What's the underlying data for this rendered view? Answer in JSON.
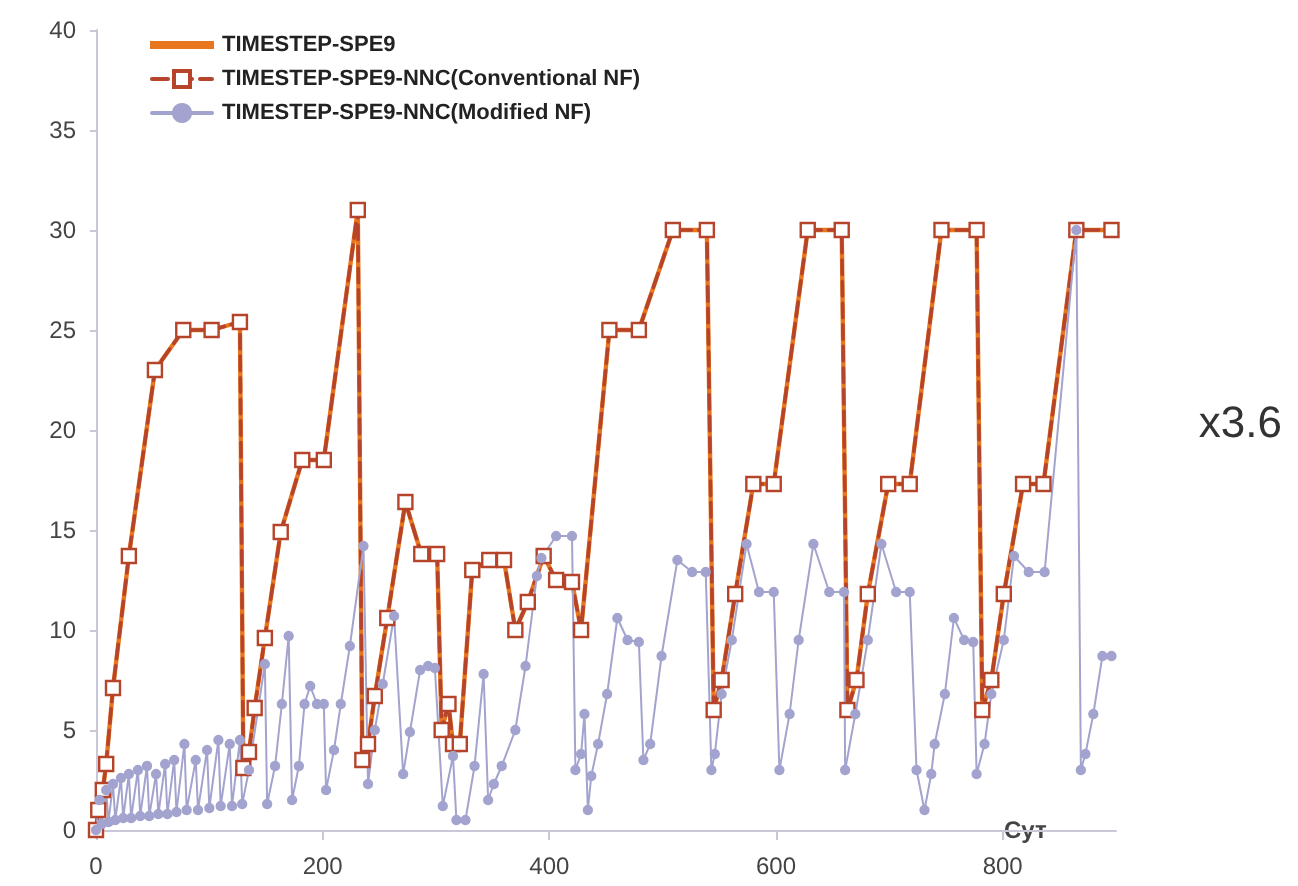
{
  "chart_data": {
    "type": "line",
    "xlabel": "Сут",
    "xlim": [
      0,
      900
    ],
    "xticks": [
      0,
      200,
      400,
      600,
      800
    ],
    "ylim": [
      0,
      40
    ],
    "yticks": [
      0,
      5,
      10,
      15,
      20,
      25,
      30,
      35,
      40
    ],
    "grid": false,
    "legend": "top left",
    "annotations": [
      "x3.6"
    ],
    "series": [
      {
        "name": "TIMESTEP-SPE9",
        "color": "#e8761e",
        "marker": "none",
        "line_style": "solid",
        "x": [
          0,
          2,
          6,
          9,
          15,
          29,
          52,
          77,
          102,
          127,
          130,
          135,
          140,
          149,
          163,
          182,
          201,
          231,
          235,
          240,
          246,
          257,
          273,
          287,
          301,
          305,
          311,
          315,
          321,
          332,
          347,
          360,
          370,
          381,
          395,
          406,
          420,
          428,
          453,
          479,
          509,
          539,
          545,
          552,
          564,
          580,
          598,
          628,
          658,
          663,
          671,
          681,
          699,
          718,
          746,
          777,
          782,
          790,
          801,
          818,
          836,
          865,
          896
        ],
        "values": [
          0,
          1,
          2,
          3.3,
          7.1,
          13.7,
          23,
          25,
          25,
          25.4,
          3.1,
          3.9,
          6.1,
          9.6,
          14.9,
          18.5,
          18.5,
          31,
          3.5,
          4.3,
          6.7,
          10.6,
          16.4,
          13.8,
          13.8,
          5,
          6.3,
          4.3,
          4.3,
          13,
          13.5,
          13.5,
          10,
          11.4,
          13.7,
          12.5,
          12.4,
          10,
          25,
          25,
          30,
          30,
          6,
          7.5,
          11.8,
          17.3,
          17.3,
          30,
          30,
          6,
          7.5,
          11.8,
          17.3,
          17.3,
          30,
          30,
          6,
          7.5,
          11.8,
          17.3,
          17.3,
          30,
          30
        ]
      },
      {
        "name": "TIMESTEP-SPE9-NNC(Conventional NF)",
        "color": "#b5442a",
        "marker": "square",
        "line_style": "dashed",
        "x": [
          0,
          2,
          6,
          9,
          15,
          29,
          52,
          77,
          102,
          127,
          130,
          135,
          140,
          149,
          163,
          182,
          201,
          231,
          235,
          240,
          246,
          257,
          273,
          287,
          301,
          305,
          311,
          315,
          321,
          332,
          347,
          360,
          370,
          381,
          395,
          406,
          420,
          428,
          453,
          479,
          509,
          539,
          545,
          552,
          564,
          580,
          598,
          628,
          658,
          663,
          671,
          681,
          699,
          718,
          746,
          777,
          782,
          790,
          801,
          818,
          836,
          865,
          896
        ],
        "values": [
          0,
          1,
          2,
          3.3,
          7.1,
          13.7,
          23,
          25,
          25,
          25.4,
          3.1,
          3.9,
          6.1,
          9.6,
          14.9,
          18.5,
          18.5,
          31,
          3.5,
          4.3,
          6.7,
          10.6,
          16.4,
          13.8,
          13.8,
          5,
          6.3,
          4.3,
          4.3,
          13,
          13.5,
          13.5,
          10,
          11.4,
          13.7,
          12.5,
          12.4,
          10,
          25,
          25,
          30,
          30,
          6,
          7.5,
          11.8,
          17.3,
          17.3,
          30,
          30,
          6,
          7.5,
          11.8,
          17.3,
          17.3,
          30,
          30,
          6,
          7.5,
          11.8,
          17.3,
          17.3,
          30,
          30
        ]
      },
      {
        "name": "TIMESTEP-SPE9-NNC(Modified NF)",
        "color": "#a3a3cf",
        "marker": "circle",
        "line_style": "solid",
        "x": [
          0,
          3,
          5,
          9,
          11,
          15,
          17,
          22,
          24,
          29,
          31,
          37,
          39,
          45,
          47,
          53,
          55,
          61,
          63,
          69,
          71,
          78,
          80,
          88,
          90,
          98,
          100,
          108,
          110,
          118,
          120,
          127,
          129,
          135,
          149,
          151,
          158,
          164,
          170,
          173,
          179,
          184,
          189,
          195,
          201,
          203,
          210,
          216,
          224,
          236,
          240,
          246,
          253,
          263,
          271,
          277,
          286,
          293,
          299,
          306,
          315,
          318,
          326,
          334,
          342,
          346,
          351,
          358,
          370,
          379,
          389,
          393,
          406,
          420,
          423,
          428,
          431,
          434,
          437,
          443,
          451,
          460,
          469,
          479,
          483,
          489,
          499,
          513,
          526,
          538,
          543,
          546,
          552,
          561,
          574,
          585,
          598,
          603,
          612,
          620,
          633,
          647,
          660,
          661,
          670,
          681,
          693,
          706,
          718,
          724,
          731,
          737,
          740,
          749,
          757,
          766,
          774,
          777,
          784,
          790,
          801,
          810,
          823,
          837,
          865,
          869,
          873,
          880,
          888,
          896
        ],
        "values": [
          0,
          1.5,
          0.3,
          2,
          0.4,
          2.3,
          0.5,
          2.6,
          0.6,
          2.8,
          0.6,
          3,
          0.7,
          3.2,
          0.7,
          2.8,
          0.8,
          3.3,
          0.8,
          3.5,
          0.9,
          4.3,
          1,
          3.5,
          1,
          4,
          1.1,
          4.5,
          1.2,
          4.3,
          1.2,
          4.5,
          1.3,
          3,
          8.3,
          1.3,
          3.2,
          6.3,
          9.7,
          1.5,
          3.2,
          6.3,
          7.2,
          6.3,
          6.3,
          2,
          4,
          6.3,
          9.2,
          14.2,
          2.3,
          5,
          7.3,
          10.7,
          2.8,
          4.9,
          8,
          8.2,
          8.1,
          1.2,
          3.7,
          0.5,
          0.5,
          3.2,
          7.8,
          1.5,
          2.3,
          3.2,
          5,
          8.2,
          12.7,
          13.6,
          14.7,
          14.7,
          3,
          3.8,
          5.8,
          1,
          2.7,
          4.3,
          6.8,
          10.6,
          9.5,
          9.4,
          3.5,
          4.3,
          8.7,
          13.5,
          12.9,
          12.9,
          3,
          3.8,
          6.8,
          9.5,
          14.3,
          11.9,
          11.9,
          3,
          5.8,
          9.5,
          14.3,
          11.9,
          11.9,
          3,
          5.8,
          9.5,
          14.3,
          11.9,
          11.9,
          3,
          1,
          2.8,
          4.3,
          6.8,
          10.6,
          9.5,
          9.4,
          2.8,
          4.3,
          6.8,
          9.5,
          13.7,
          12.9,
          12.9,
          30,
          3,
          3.8,
          5.8,
          8.7,
          8.7
        ]
      }
    ]
  }
}
